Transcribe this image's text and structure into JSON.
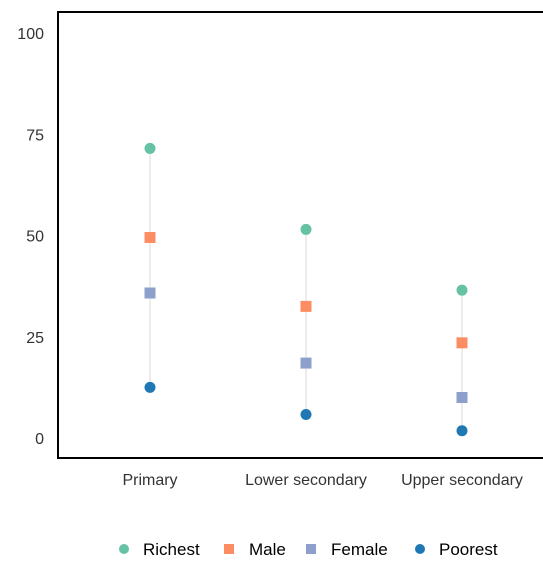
{
  "chart_data": {
    "type": "scatter",
    "title": "",
    "xlabel": "",
    "ylabel": "",
    "categories": [
      "Primary",
      "Lower secondary",
      "Upper secondary"
    ],
    "ylim": [
      0,
      100
    ],
    "yticks": [
      0,
      25,
      50,
      75,
      100
    ],
    "grid": false,
    "legend_position": "bottom",
    "series": [
      {
        "name": "Richest",
        "values": [
          71.5,
          51.5,
          36.5
        ],
        "color": "#66c2a5",
        "marker": "circle"
      },
      {
        "name": "Male",
        "values": [
          49.5,
          32.5,
          23.5
        ],
        "color": "#fc8d62",
        "marker": "square"
      },
      {
        "name": "Female",
        "values": [
          35.8,
          18.5,
          10.0
        ],
        "color": "#8da0cb",
        "marker": "square"
      },
      {
        "name": "Poorest",
        "values": [
          12.5,
          5.8,
          1.8
        ],
        "color": "#1f78b4",
        "marker": "circle"
      }
    ]
  }
}
